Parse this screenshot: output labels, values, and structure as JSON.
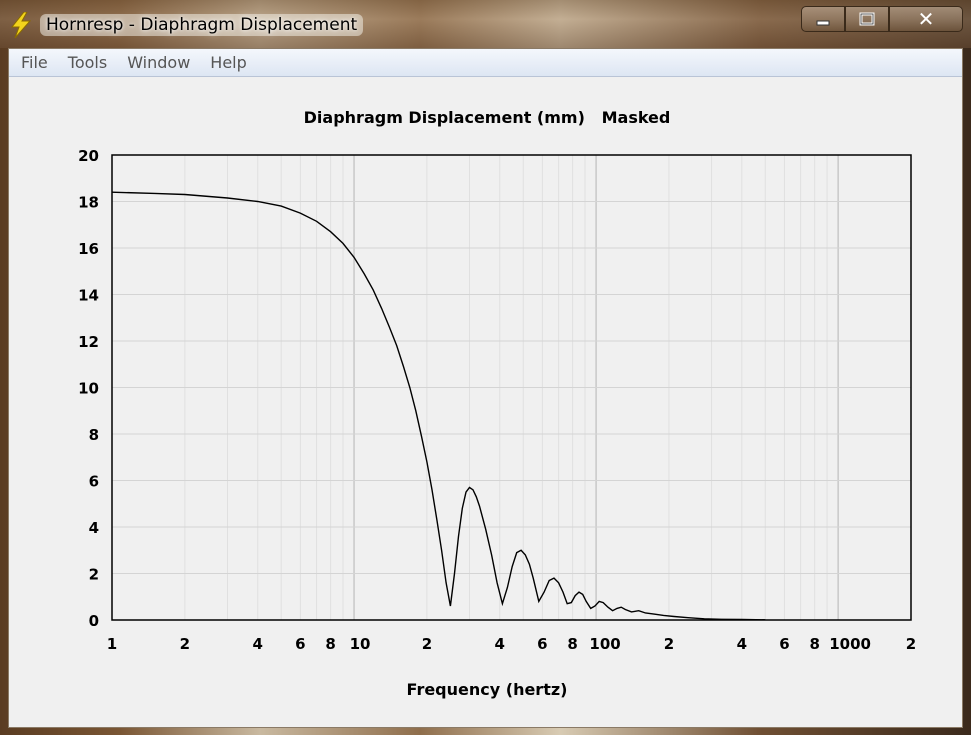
{
  "window": {
    "title": "Hornresp - Diaphragm Displacement",
    "icon": "lightning-bolt-icon",
    "caption_buttons": [
      "minimize",
      "maximize",
      "close"
    ],
    "close_glyph": "✕"
  },
  "menu": {
    "items": [
      {
        "label": "File"
      },
      {
        "label": "Tools"
      },
      {
        "label": "Window"
      },
      {
        "label": "Help"
      }
    ]
  },
  "chart_data": {
    "type": "line",
    "title": "Diaphragm Displacement (mm)   Masked",
    "xlabel": "Frequency (hertz)",
    "ylabel": "",
    "x_scale": "log",
    "xlim": [
      1,
      2000
    ],
    "ylim": [
      0,
      20
    ],
    "yticks": [
      0,
      2,
      4,
      6,
      8,
      10,
      12,
      14,
      16,
      18,
      20
    ],
    "xtick_labels": [
      {
        "x": 1,
        "label": "1"
      },
      {
        "x": 2,
        "label": "2"
      },
      {
        "x": 4,
        "label": "4"
      },
      {
        "x": 6,
        "label": "6"
      },
      {
        "x": 8,
        "label": "8"
      },
      {
        "x": 10,
        "label": "10"
      },
      {
        "x": 20,
        "label": "2"
      },
      {
        "x": 40,
        "label": "4"
      },
      {
        "x": 60,
        "label": "6"
      },
      {
        "x": 80,
        "label": "8"
      },
      {
        "x": 100,
        "label": "100"
      },
      {
        "x": 200,
        "label": "2"
      },
      {
        "x": 400,
        "label": "4"
      },
      {
        "x": 600,
        "label": "6"
      },
      {
        "x": 800,
        "label": "8"
      },
      {
        "x": 1000,
        "label": "1000"
      },
      {
        "x": 2000,
        "label": "2"
      }
    ],
    "grid": true,
    "line_color": "#000000",
    "series": [
      {
        "x": [
          1,
          1.5,
          2,
          3,
          4,
          5,
          6,
          7,
          8,
          9,
          10,
          11,
          12,
          13,
          14,
          15,
          16,
          17,
          18,
          19,
          20,
          21,
          22,
          23,
          24,
          25,
          26,
          27,
          28,
          29,
          30,
          31,
          32,
          33,
          35,
          37,
          39,
          41,
          43,
          45,
          47,
          49,
          51,
          53,
          55,
          58,
          61,
          64,
          67,
          70,
          73,
          76,
          79,
          82,
          85,
          88,
          91,
          95,
          99,
          103,
          107,
          112,
          117,
          122,
          127,
          132,
          140,
          150,
          160,
          175,
          190,
          210,
          240,
          280,
          330,
          400,
          500
        ],
        "y": [
          18.4,
          18.35,
          18.3,
          18.15,
          18.0,
          17.8,
          17.5,
          17.15,
          16.7,
          16.2,
          15.6,
          14.9,
          14.2,
          13.4,
          12.6,
          11.8,
          10.9,
          10.0,
          9.0,
          7.9,
          6.8,
          5.6,
          4.3,
          3.0,
          1.6,
          0.6,
          2.0,
          3.6,
          4.8,
          5.5,
          5.7,
          5.6,
          5.3,
          4.9,
          3.9,
          2.8,
          1.6,
          0.7,
          1.4,
          2.3,
          2.9,
          3.0,
          2.8,
          2.4,
          1.8,
          0.8,
          1.2,
          1.7,
          1.8,
          1.6,
          1.2,
          0.7,
          0.75,
          1.05,
          1.2,
          1.1,
          0.8,
          0.5,
          0.6,
          0.8,
          0.75,
          0.55,
          0.4,
          0.5,
          0.55,
          0.45,
          0.35,
          0.4,
          0.3,
          0.25,
          0.2,
          0.15,
          0.1,
          0.05,
          0.03,
          0.02,
          0.01
        ]
      }
    ]
  }
}
